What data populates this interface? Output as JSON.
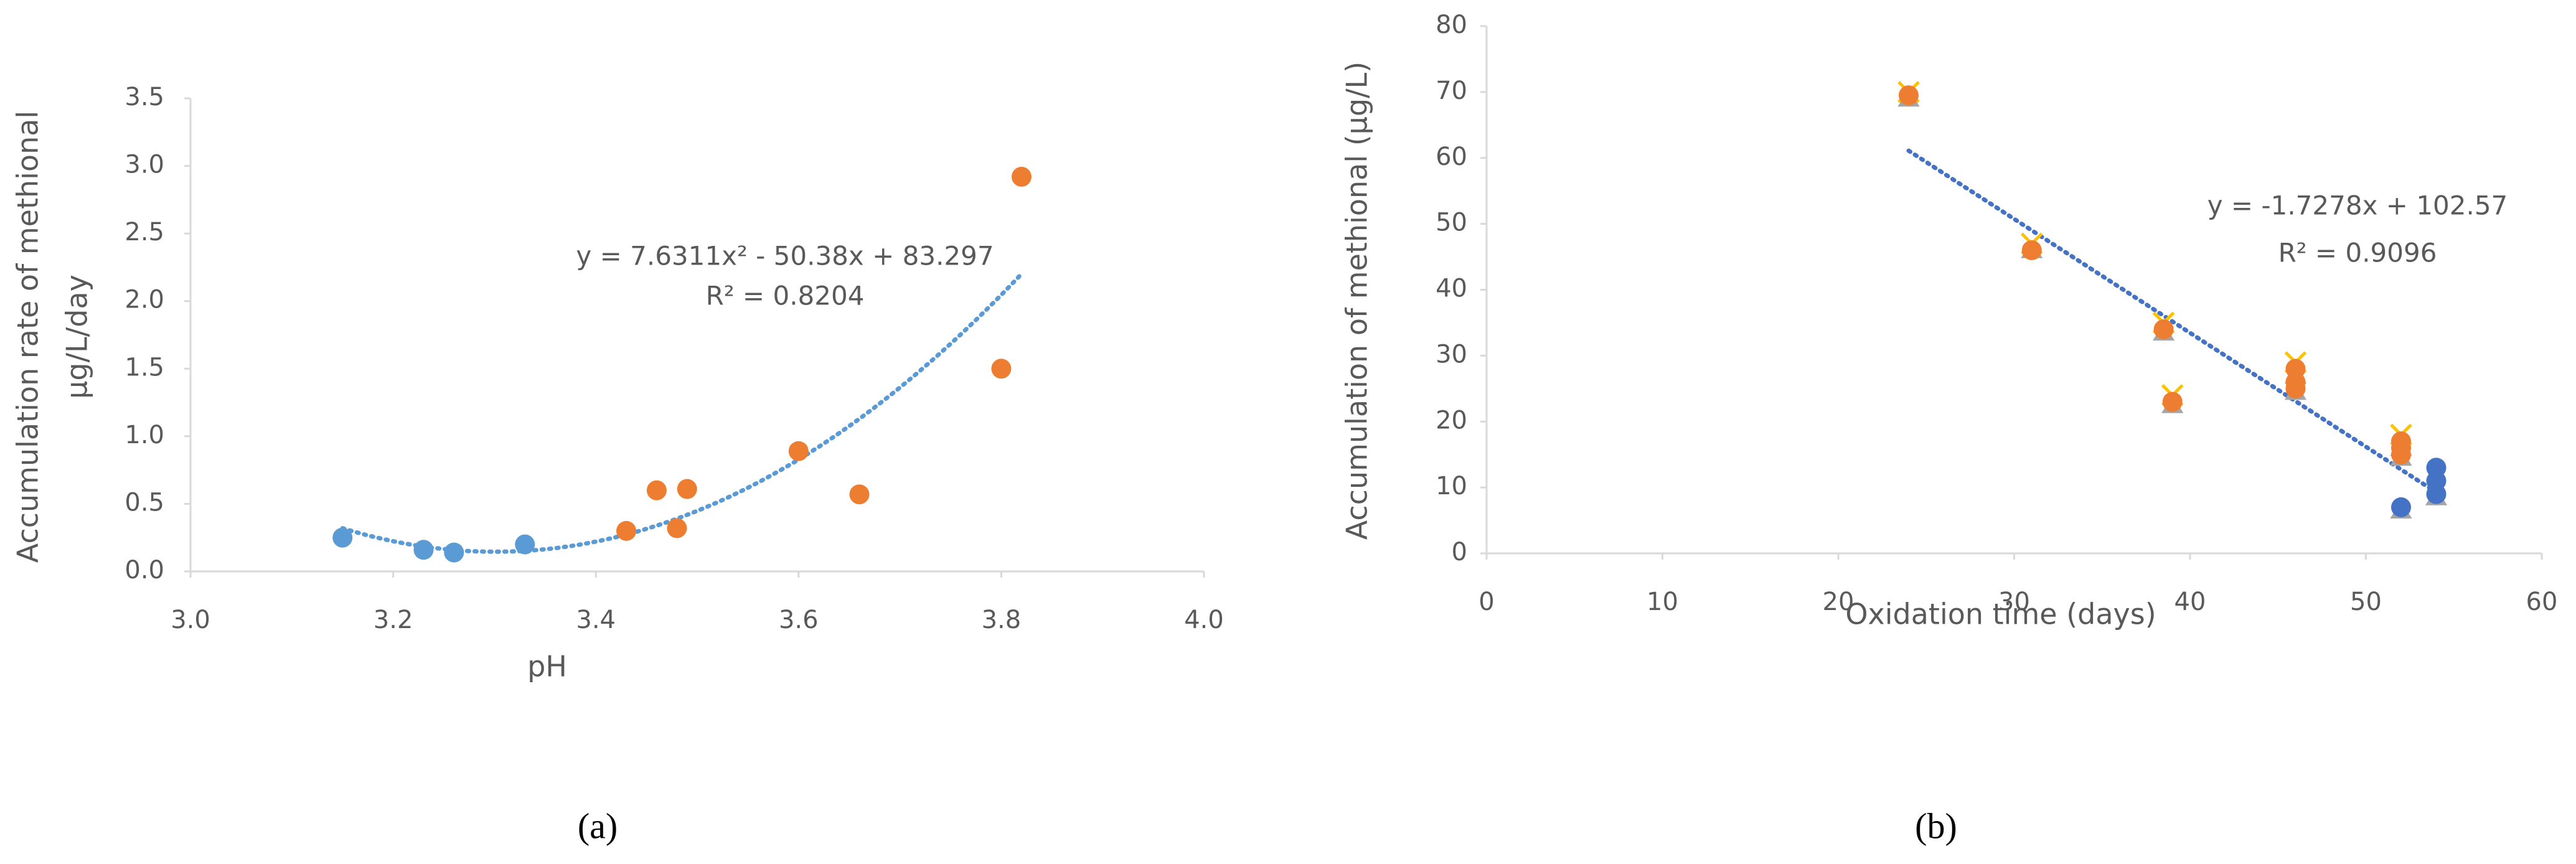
{
  "chart_data": [
    {
      "type": "scatter",
      "caption": "(a)",
      "xlabel": "pH",
      "ylabel": [
        "Accumulation rate of methional",
        "μg/L/day"
      ],
      "xlim": [
        3.0,
        4.0
      ],
      "xticks": [
        {
          "value": 3.0,
          "label": "3.0"
        },
        {
          "value": 3.2,
          "label": "3.2"
        },
        {
          "value": 3.4,
          "label": "3.4"
        },
        {
          "value": 3.6,
          "label": "3.6"
        },
        {
          "value": 3.8,
          "label": "3.8"
        },
        {
          "value": 4.0,
          "label": "4.0"
        }
      ],
      "ylim": [
        0,
        3.5
      ],
      "yticks": [
        {
          "value": 0,
          "label": "0.0"
        },
        {
          "value": 0.5,
          "label": "0.5"
        },
        {
          "value": 1.0,
          "label": "1.0"
        },
        {
          "value": 1.5,
          "label": "1.5"
        },
        {
          "value": 2.0,
          "label": "2.0"
        },
        {
          "value": 2.5,
          "label": "2.5"
        },
        {
          "value": 3.0,
          "label": "3.0"
        },
        {
          "value": 3.5,
          "label": "3.5"
        }
      ],
      "series": [
        {
          "color": "#5b9bd5",
          "marker": "circle",
          "x": [
            3.15,
            3.23,
            3.26,
            3.33
          ],
          "values": [
            0.25,
            0.16,
            0.14,
            0.2
          ]
        },
        {
          "color": "#ed7d31",
          "marker": "circle",
          "x": [
            3.43,
            3.46,
            3.48,
            3.49,
            3.6,
            3.66,
            3.8,
            3.82
          ],
          "values": [
            0.3,
            0.6,
            0.32,
            0.61,
            0.89,
            0.57,
            1.5,
            2.92
          ]
        }
      ],
      "trendline": {
        "color": "#5b9bd5",
        "coefficients": [
          83.297,
          -50.38,
          7.6311
        ],
        "x": [
          3.15,
          3.82
        ]
      },
      "equation": "y = 7.6311x² - 50.38x + 83.297",
      "r_squared": "R² = 0.8204"
    },
    {
      "type": "scatter",
      "caption": "(b)",
      "xlabel": "Oxidation time (days)",
      "ylabel": [
        "Accumulation of methional (μg/L)"
      ],
      "xlim": [
        0,
        60
      ],
      "xticks": [
        0,
        10,
        20,
        30,
        40,
        50,
        60
      ],
      "ylim": [
        0,
        80
      ],
      "yticks": [
        0,
        10,
        20,
        30,
        40,
        50,
        60,
        70,
        80
      ],
      "series": [
        {
          "color": "#ffc000",
          "marker": "x",
          "x": [
            24,
            31,
            38.5,
            39,
            46,
            52
          ],
          "values": [
            70,
            47,
            35,
            24,
            29,
            18
          ]
        },
        {
          "color": "#a5a5a5",
          "marker": "triangle",
          "x": [
            24,
            31,
            38.5,
            39,
            46,
            46,
            52,
            52,
            52,
            54
          ],
          "values": [
            69,
            46,
            33.5,
            22.5,
            27,
            24.5,
            16,
            14.5,
            6.5,
            8.5
          ]
        },
        {
          "color": "#ed7d31",
          "marker": "circle",
          "x": [
            24,
            31,
            38.5,
            39,
            46,
            46,
            46,
            52,
            52,
            52
          ],
          "values": [
            69.5,
            46,
            34,
            23,
            28,
            26,
            25,
            17,
            16,
            15
          ]
        },
        {
          "color": "#4472c4",
          "marker": "circle",
          "x": [
            52,
            54,
            54,
            54
          ],
          "values": [
            7,
            13,
            11,
            9
          ]
        }
      ],
      "trendline": {
        "color": "#4472c4",
        "coefficients": [
          102.57,
          -1.7278
        ],
        "x": [
          24,
          54
        ]
      },
      "equation": "y = -1.7278x + 102.57",
      "r_squared": "R² = 0.9096"
    }
  ]
}
